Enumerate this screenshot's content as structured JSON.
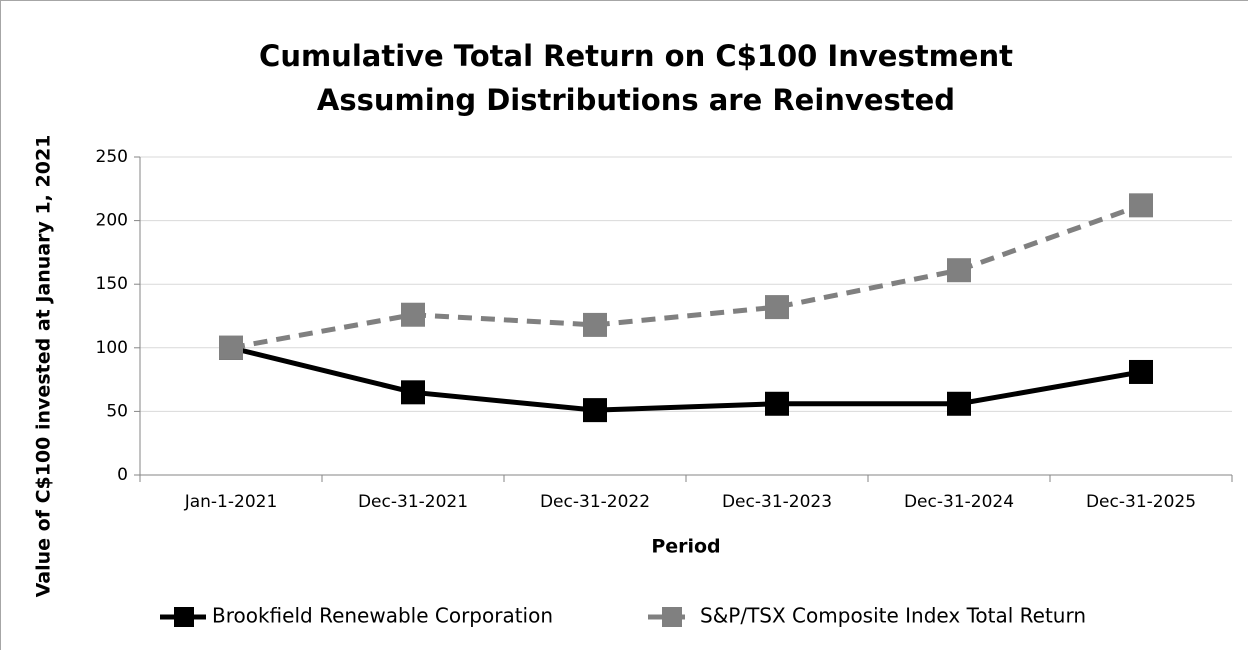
{
  "chart_data": {
    "type": "line",
    "title": "Cumulative Total Return on C$100 Investment",
    "subtitle": "Assuming Distributions are Reinvested",
    "x_label": "Period",
    "y_label": "Value of C$100 invested at January 1, 2021",
    "categories": [
      "Jan-1-2021",
      "Dec-31-2021",
      "Dec-31-2022",
      "Dec-31-2023",
      "Dec-31-2024",
      "Dec-31-2025"
    ],
    "series": [
      {
        "name": "Brookfield Renewable Corporation",
        "color": "#000000",
        "line_style": "solid",
        "values": [
          100,
          65,
          51,
          56,
          56,
          81
        ]
      },
      {
        "name": "S&P/TSX Composite Index Total Return",
        "color": "#808080",
        "line_style": "dashed",
        "values": [
          100,
          126,
          118,
          132,
          161,
          212
        ]
      }
    ],
    "ylim": [
      0,
      250
    ],
    "yticks": [
      0,
      50,
      100,
      150,
      200,
      250
    ],
    "grid": true,
    "legend": "bottom"
  }
}
